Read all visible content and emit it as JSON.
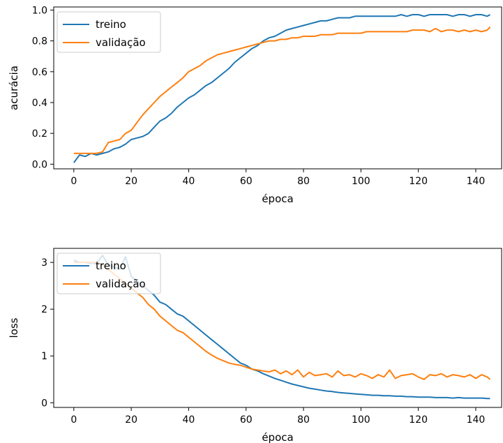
{
  "chart_data": [
    {
      "type": "line",
      "xlabel": "época",
      "ylabel": "acurácia",
      "xlim": [
        -7,
        149
      ],
      "ylim": [
        -0.03,
        1.02
      ],
      "xticks": [
        0,
        20,
        40,
        60,
        80,
        100,
        120,
        140
      ],
      "yticks": [
        0.0,
        0.2,
        0.4,
        0.6,
        0.8,
        1.0
      ],
      "ytick_labels": [
        "0.0",
        "0.2",
        "0.4",
        "0.6",
        "0.8",
        "1.0"
      ],
      "legend": "upper-left",
      "series": [
        {
          "name": "treino",
          "color": "#1f77b4",
          "x": [
            0,
            2,
            4,
            6,
            8,
            10,
            12,
            14,
            16,
            18,
            20,
            22,
            24,
            26,
            28,
            30,
            32,
            34,
            36,
            38,
            40,
            42,
            44,
            46,
            48,
            50,
            52,
            54,
            56,
            58,
            60,
            62,
            64,
            66,
            68,
            70,
            72,
            74,
            76,
            78,
            80,
            82,
            84,
            86,
            88,
            90,
            92,
            94,
            96,
            98,
            100,
            102,
            104,
            106,
            108,
            110,
            112,
            114,
            116,
            118,
            120,
            122,
            124,
            126,
            128,
            130,
            132,
            134,
            136,
            138,
            140,
            142,
            144,
            145
          ],
          "y": [
            0.01,
            0.06,
            0.05,
            0.07,
            0.06,
            0.07,
            0.08,
            0.1,
            0.11,
            0.13,
            0.16,
            0.17,
            0.18,
            0.2,
            0.24,
            0.28,
            0.3,
            0.33,
            0.37,
            0.4,
            0.43,
            0.45,
            0.48,
            0.51,
            0.53,
            0.56,
            0.59,
            0.62,
            0.66,
            0.69,
            0.72,
            0.75,
            0.77,
            0.8,
            0.82,
            0.83,
            0.85,
            0.87,
            0.88,
            0.89,
            0.9,
            0.91,
            0.92,
            0.93,
            0.93,
            0.94,
            0.95,
            0.95,
            0.95,
            0.96,
            0.96,
            0.96,
            0.96,
            0.96,
            0.96,
            0.96,
            0.96,
            0.97,
            0.96,
            0.97,
            0.97,
            0.96,
            0.97,
            0.97,
            0.97,
            0.97,
            0.96,
            0.97,
            0.97,
            0.96,
            0.97,
            0.97,
            0.96,
            0.97
          ]
        },
        {
          "name": "validação",
          "color": "#ff7f0e",
          "x": [
            0,
            2,
            4,
            6,
            8,
            10,
            12,
            14,
            16,
            18,
            20,
            22,
            24,
            26,
            28,
            30,
            32,
            34,
            36,
            38,
            40,
            42,
            44,
            46,
            48,
            50,
            52,
            54,
            56,
            58,
            60,
            62,
            64,
            66,
            68,
            70,
            72,
            74,
            76,
            78,
            80,
            82,
            84,
            86,
            88,
            90,
            92,
            94,
            96,
            98,
            100,
            102,
            104,
            106,
            108,
            110,
            112,
            114,
            116,
            118,
            120,
            122,
            124,
            126,
            128,
            130,
            132,
            134,
            136,
            138,
            140,
            142,
            144,
            145
          ],
          "y": [
            0.07,
            0.07,
            0.07,
            0.07,
            0.07,
            0.08,
            0.14,
            0.15,
            0.16,
            0.2,
            0.22,
            0.27,
            0.32,
            0.36,
            0.4,
            0.44,
            0.47,
            0.5,
            0.53,
            0.56,
            0.6,
            0.62,
            0.64,
            0.67,
            0.69,
            0.71,
            0.72,
            0.73,
            0.74,
            0.75,
            0.76,
            0.77,
            0.78,
            0.79,
            0.8,
            0.8,
            0.81,
            0.81,
            0.82,
            0.82,
            0.83,
            0.83,
            0.83,
            0.84,
            0.84,
            0.84,
            0.85,
            0.85,
            0.85,
            0.85,
            0.85,
            0.86,
            0.86,
            0.86,
            0.86,
            0.86,
            0.86,
            0.86,
            0.86,
            0.87,
            0.87,
            0.87,
            0.86,
            0.88,
            0.86,
            0.87,
            0.87,
            0.86,
            0.87,
            0.86,
            0.87,
            0.86,
            0.87,
            0.89
          ]
        }
      ]
    },
    {
      "type": "line",
      "xlabel": "época",
      "ylabel": "loss",
      "xlim": [
        -7,
        149
      ],
      "ylim": [
        -0.1,
        3.3
      ],
      "xticks": [
        0,
        20,
        40,
        60,
        80,
        100,
        120,
        140
      ],
      "yticks": [
        0,
        1,
        2,
        3
      ],
      "ytick_labels": [
        "0",
        "1",
        "2",
        "3"
      ],
      "legend": "upper-left",
      "series": [
        {
          "name": "treino",
          "color": "#1f77b4",
          "x": [
            0,
            2,
            4,
            6,
            8,
            10,
            12,
            14,
            16,
            18,
            20,
            22,
            24,
            26,
            28,
            30,
            32,
            34,
            36,
            38,
            40,
            42,
            44,
            46,
            48,
            50,
            52,
            54,
            56,
            58,
            60,
            62,
            64,
            66,
            68,
            70,
            72,
            74,
            76,
            78,
            80,
            82,
            84,
            86,
            88,
            90,
            92,
            94,
            96,
            98,
            100,
            102,
            104,
            106,
            108,
            110,
            112,
            114,
            116,
            118,
            120,
            122,
            124,
            126,
            128,
            130,
            132,
            134,
            136,
            138,
            140,
            142,
            144,
            145
          ],
          "y": [
            3.05,
            3.0,
            3.0,
            2.98,
            2.98,
            3.15,
            2.95,
            2.9,
            2.85,
            3.12,
            2.7,
            2.6,
            2.5,
            2.4,
            2.3,
            2.15,
            2.1,
            2.0,
            1.9,
            1.85,
            1.75,
            1.65,
            1.55,
            1.45,
            1.35,
            1.25,
            1.15,
            1.05,
            0.95,
            0.85,
            0.8,
            0.72,
            0.68,
            0.62,
            0.57,
            0.52,
            0.48,
            0.44,
            0.4,
            0.37,
            0.34,
            0.31,
            0.29,
            0.27,
            0.25,
            0.24,
            0.22,
            0.21,
            0.2,
            0.19,
            0.18,
            0.17,
            0.16,
            0.16,
            0.15,
            0.15,
            0.14,
            0.14,
            0.13,
            0.13,
            0.12,
            0.12,
            0.12,
            0.11,
            0.11,
            0.11,
            0.1,
            0.11,
            0.1,
            0.1,
            0.1,
            0.1,
            0.09,
            0.09
          ]
        },
        {
          "name": "validação",
          "color": "#ff7f0e",
          "x": [
            0,
            2,
            4,
            6,
            8,
            10,
            12,
            14,
            16,
            18,
            20,
            22,
            24,
            26,
            28,
            30,
            32,
            34,
            36,
            38,
            40,
            42,
            44,
            46,
            48,
            50,
            52,
            54,
            56,
            58,
            60,
            62,
            64,
            66,
            68,
            70,
            72,
            74,
            76,
            78,
            80,
            82,
            84,
            86,
            88,
            90,
            92,
            94,
            96,
            98,
            100,
            102,
            104,
            106,
            108,
            110,
            112,
            114,
            116,
            118,
            120,
            122,
            124,
            126,
            128,
            130,
            132,
            134,
            136,
            138,
            140,
            142,
            144,
            145
          ],
          "y": [
            3.0,
            3.0,
            3.0,
            3.0,
            3.0,
            2.95,
            2.85,
            2.75,
            2.65,
            2.55,
            2.45,
            2.35,
            2.25,
            2.1,
            2.0,
            1.85,
            1.75,
            1.65,
            1.55,
            1.5,
            1.4,
            1.3,
            1.2,
            1.1,
            1.02,
            0.95,
            0.9,
            0.85,
            0.82,
            0.8,
            0.76,
            0.72,
            0.7,
            0.68,
            0.66,
            0.7,
            0.62,
            0.68,
            0.6,
            0.7,
            0.55,
            0.65,
            0.58,
            0.6,
            0.62,
            0.55,
            0.68,
            0.58,
            0.6,
            0.55,
            0.62,
            0.58,
            0.52,
            0.6,
            0.55,
            0.7,
            0.52,
            0.58,
            0.6,
            0.62,
            0.55,
            0.5,
            0.6,
            0.58,
            0.62,
            0.55,
            0.6,
            0.58,
            0.55,
            0.6,
            0.52,
            0.6,
            0.55,
            0.5
          ]
        }
      ]
    }
  ]
}
